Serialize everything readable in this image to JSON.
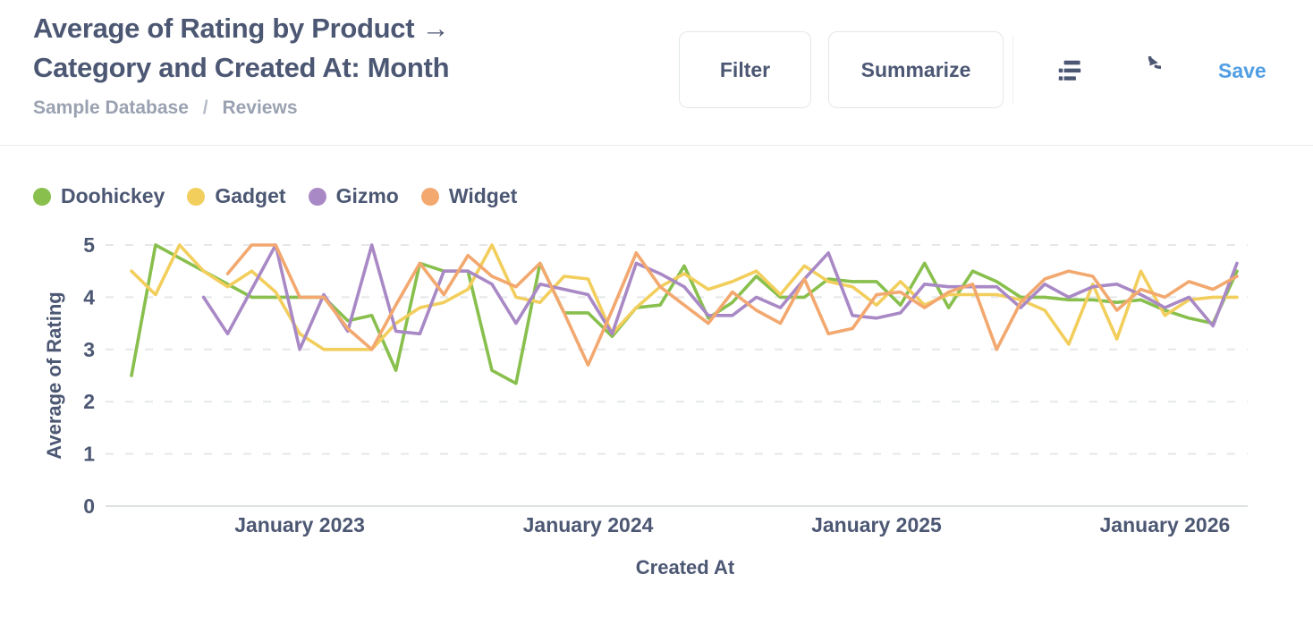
{
  "header": {
    "title": "Average of Rating by Product → Category and Created At: Month",
    "title_line1": "Average of Rating by Product →",
    "title_line2": "Category and Created At: Month",
    "breadcrumb": {
      "database": "Sample Database",
      "separator": "/",
      "table": "Reviews"
    },
    "actions": {
      "filter_label": "Filter",
      "summarize_label": "Summarize",
      "save_label": "Save",
      "icons": [
        "notebook-icon",
        "refresh-icon"
      ]
    }
  },
  "chart_data": {
    "type": "line",
    "title": "Average of Rating by Product → Category and Created At: Month",
    "xlabel": "Created At",
    "ylabel": "Average of Rating",
    "ylim": [
      0,
      5
    ],
    "yticks": [
      0,
      1,
      2,
      3,
      4,
      5
    ],
    "grid": "dashed-horizontal",
    "legend_position": "top-left",
    "x_ticks": [
      {
        "index": 7,
        "label": "January 2023"
      },
      {
        "index": 19,
        "label": "January 2024"
      },
      {
        "index": 31,
        "label": "January 2025"
      },
      {
        "index": 43,
        "label": "January 2026"
      }
    ],
    "months": [
      "2022-06",
      "2022-07",
      "2022-08",
      "2022-09",
      "2022-10",
      "2022-11",
      "2022-12",
      "2023-01",
      "2023-02",
      "2023-03",
      "2023-04",
      "2023-05",
      "2023-06",
      "2023-07",
      "2023-08",
      "2023-09",
      "2023-10",
      "2023-11",
      "2023-12",
      "2024-01",
      "2024-02",
      "2024-03",
      "2024-04",
      "2024-05",
      "2024-06",
      "2024-07",
      "2024-08",
      "2024-09",
      "2024-10",
      "2024-11",
      "2024-12",
      "2025-01",
      "2025-02",
      "2025-03",
      "2025-04",
      "2025-05",
      "2025-06",
      "2025-07",
      "2025-08",
      "2025-09",
      "2025-10",
      "2025-11",
      "2025-12",
      "2026-01",
      "2026-02",
      "2026-03",
      "2026-04"
    ],
    "series": [
      {
        "name": "Doohickey",
        "color": "#88BF4D",
        "values": [
          2.5,
          5,
          4.75,
          4.5,
          4.25,
          4,
          4,
          4,
          4,
          3.55,
          3.65,
          2.6,
          4.65,
          4.5,
          4.5,
          2.6,
          2.35,
          4.65,
          3.7,
          3.7,
          3.25,
          3.8,
          3.85,
          4.6,
          3.6,
          3.9,
          4.4,
          4,
          4,
          4.35,
          4.3,
          4.3,
          3.85,
          4.65,
          3.8,
          4.5,
          4.3,
          4,
          4,
          3.95,
          3.95,
          3.9,
          3.95,
          3.75,
          3.6,
          3.5,
          4.5
        ]
      },
      {
        "name": "Gadget",
        "color": "#F2CE5C",
        "values": [
          4.5,
          4.05,
          5,
          4.5,
          4.2,
          4.5,
          4.1,
          3.3,
          3,
          3,
          3,
          3.5,
          3.8,
          3.9,
          4.15,
          5,
          4,
          3.9,
          4.4,
          4.35,
          3.3,
          3.8,
          4.2,
          4.45,
          4.15,
          4.3,
          4.5,
          4.05,
          4.6,
          4.3,
          4.2,
          3.85,
          4.3,
          3.85,
          4.05,
          4.05,
          4.05,
          3.95,
          3.75,
          3.1,
          4.25,
          3.2,
          4.5,
          3.65,
          3.95,
          4,
          4
        ]
      },
      {
        "name": "Gizmo",
        "color": "#A989C5",
        "values": [
          null,
          null,
          null,
          4,
          3.3,
          4.15,
          5,
          3,
          4.05,
          3.35,
          5,
          3.35,
          3.3,
          4.5,
          4.5,
          4.25,
          3.5,
          4.25,
          4.15,
          4.05,
          3.3,
          4.65,
          4.45,
          4.2,
          3.65,
          3.65,
          4,
          3.8,
          4.35,
          4.85,
          3.65,
          3.6,
          3.7,
          4.25,
          4.2,
          4.2,
          4.2,
          3.8,
          4.25,
          4,
          4.2,
          4.25,
          4.05,
          3.8,
          4,
          3.45,
          4.65
        ]
      },
      {
        "name": "Widget",
        "color": "#F2A86F",
        "values": [
          null,
          null,
          null,
          null,
          4.45,
          5,
          5,
          4,
          4,
          3.4,
          3,
          3.85,
          4.65,
          4.05,
          4.8,
          4.4,
          4.2,
          4.65,
          3.7,
          2.7,
          3.75,
          4.85,
          4.2,
          3.85,
          3.5,
          4.1,
          3.75,
          3.5,
          4.35,
          3.3,
          3.4,
          4.05,
          4.1,
          3.8,
          4.1,
          4.25,
          3,
          3.9,
          4.35,
          4.5,
          4.4,
          3.75,
          4.15,
          4,
          4.3,
          4.15,
          4.4
        ]
      }
    ]
  }
}
